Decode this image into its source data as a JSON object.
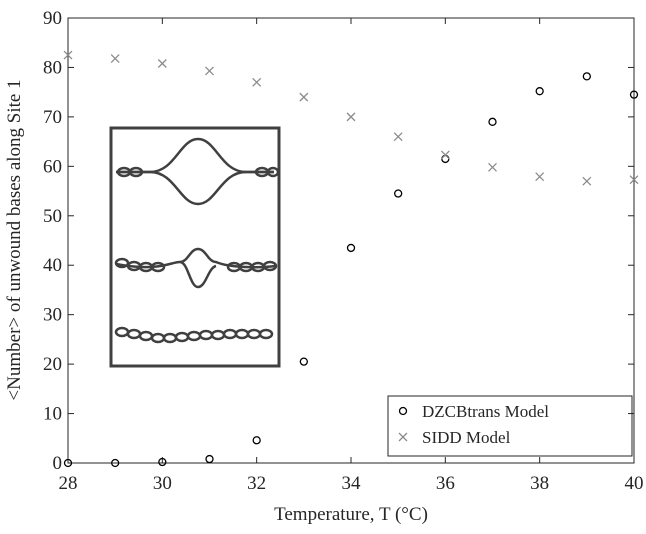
{
  "chart_data": {
    "type": "scatter",
    "x_label": "Temperature, T (°C)",
    "y_label": "<Number> of unwound bases along Site 1",
    "xlim": [
      28,
      40
    ],
    "xticks": [
      28,
      30,
      32,
      34,
      36,
      38,
      40
    ],
    "ylim": [
      0,
      90
    ],
    "yticks": [
      0,
      10,
      20,
      30,
      40,
      50,
      60,
      70,
      80,
      90
    ],
    "legend": "lower right",
    "series": [
      {
        "name": "DZCBtrans Model",
        "color": "#000000",
        "marker": "o",
        "x": [
          28,
          29,
          30,
          31,
          32,
          33,
          34,
          35,
          36,
          37,
          38,
          39,
          40
        ],
        "values": [
          0,
          0,
          0.2,
          0.8,
          4.6,
          20.5,
          43.5,
          54.5,
          61.5,
          69,
          75.2,
          78.2,
          74.5
        ]
      },
      {
        "name": "SIDD Model",
        "color": "#8c8c8c",
        "marker": "x",
        "x": [
          28,
          29,
          30,
          31,
          32,
          33,
          34,
          35,
          36,
          37,
          38,
          39,
          40
        ],
        "values": [
          82.5,
          81.8,
          80.8,
          79.3,
          77,
          74,
          70,
          66,
          62.3,
          59.8,
          57.9,
          57,
          57.3
        ]
      }
    ]
  }
}
